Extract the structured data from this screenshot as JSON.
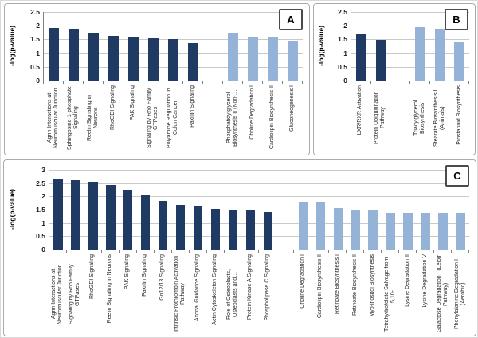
{
  "figure": {
    "panels": [
      {
        "label": "A"
      },
      {
        "label": "B"
      },
      {
        "label": "C"
      }
    ]
  },
  "colors": {
    "dark": "#1f3b63",
    "light": "#95b3d7"
  },
  "chart_data": [
    {
      "panel": "A",
      "type": "bar",
      "title": "",
      "xlabel": "",
      "ylabel": "-log(p-value)",
      "ylim": [
        0,
        2.5
      ],
      "ytick_step": 0.5,
      "grid": true,
      "legend": "none",
      "series": [
        {
          "name": "dark-blue-bars",
          "color_key": "dark",
          "categories": [
            "Agrin Interactions at Neuromuscular Junction",
            "Sphingosine-1-phosphate Signaling",
            "Reelin Signaling in Neurons",
            "RhoGDI Signaling",
            "PAK Signaling",
            "Signaling by Rho Family GTPases",
            "Polyamine Regulation in Colon Cancer",
            "Paxillin Signaling"
          ],
          "values": [
            1.93,
            1.86,
            1.73,
            1.62,
            1.57,
            1.53,
            1.5,
            1.38
          ]
        },
        {
          "name": "light-blue-bars",
          "color_key": "light",
          "categories": [
            "Phosphatidylglycerol Biosynthesis II (Non-…",
            "Choline Degradation I",
            "Cardiolipin Biosynthesis II",
            "Gluconeogenesis I"
          ],
          "values": [
            1.71,
            1.61,
            1.61,
            1.46
          ]
        }
      ]
    },
    {
      "panel": "B",
      "type": "bar",
      "title": "",
      "xlabel": "",
      "ylabel": "-log(p-value)",
      "ylim": [
        0,
        2.5
      ],
      "ytick_step": 0.5,
      "grid": true,
      "legend": "none",
      "series": [
        {
          "name": "dark-blue-bars",
          "color_key": "dark",
          "categories": [
            "LXR/RXR Activation",
            "Protein Ubiquitination Pathway"
          ],
          "values": [
            1.7,
            1.47
          ]
        },
        {
          "name": "light-blue-bars",
          "color_key": "light",
          "categories": [
            "Triacylglycerol Biosynthesis",
            "Stearate Biosynthesis I (Animals)",
            "Prostanoid Biosynthesis"
          ],
          "values": [
            1.94,
            1.88,
            1.4
          ]
        }
      ]
    },
    {
      "panel": "C",
      "type": "bar",
      "title": "",
      "xlabel": "",
      "ylabel": "-log(p-value)",
      "ylim": [
        0,
        3
      ],
      "ytick_step": 0.5,
      "grid": true,
      "legend": "none",
      "series": [
        {
          "name": "dark-blue-bars",
          "color_key": "dark",
          "categories": [
            "Agrin Interactions at Neuromuscular Junction",
            "Signaling by Rho Family GTPases",
            "RhoGDI Signaling",
            "Reelin Signaling in Neurons",
            "PAK Signaling",
            "Paxillin Signaling",
            "Gα12/13 Signaling",
            "Intrinsic Prothrombin Activation Pathway",
            "Axonal Guidance Signaling",
            "Actin Cytoskeleton Signaling",
            "Role of Osteoblasts, Osteoclasts and…",
            "Protein Kinase A Signaling",
            "Phospholipase C Signaling"
          ],
          "values": [
            2.64,
            2.6,
            2.56,
            2.42,
            2.26,
            2.05,
            1.83,
            1.67,
            1.64,
            1.54,
            1.51,
            1.47,
            1.41
          ]
        },
        {
          "name": "light-blue-bars",
          "color_key": "light",
          "categories": [
            "Choline Degradation I",
            "Cardiolipin Biosynthesis II",
            "Retinoate Biosynthesis I",
            "Retinoate Biosynthesis II",
            "Myo-inositol Biosynthesis",
            "Tetrahydrofolate Salvage from 5,10-…",
            "Lysine Degradation II",
            "Lysine Degradation V",
            "Galactose Degradation I (Leloir Pathway)",
            "Phenylalanine Degradation I (Aerobic)"
          ],
          "values": [
            1.78,
            1.81,
            1.56,
            1.49,
            1.49,
            1.38,
            1.38,
            1.38,
            1.38,
            1.38
          ]
        }
      ]
    }
  ]
}
